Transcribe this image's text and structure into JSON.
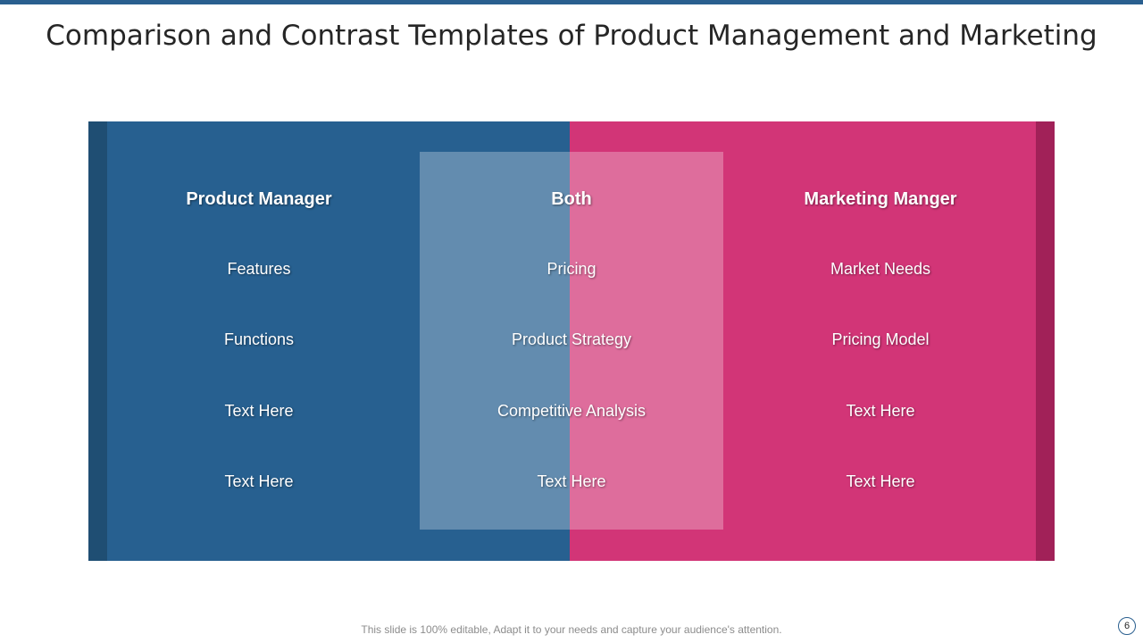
{
  "slide": {
    "title": "Comparison and Contrast Templates of Product Management and Marketing",
    "footer": "This slide is 100% editable, Adapt it to your needs and capture your audience's attention.",
    "page_number": "6"
  },
  "colors": {
    "top_bar": "#2a5f8f",
    "left_panel": "#276090",
    "left_edge": "#1f4e73",
    "right_panel": "#d23577",
    "right_edge": "#a12158"
  },
  "columns": {
    "left": {
      "heading": "Product Manager",
      "items": [
        "Features",
        "Functions",
        "Text Here",
        "Text Here"
      ]
    },
    "middle": {
      "heading": "Both",
      "items": [
        "Pricing",
        "Product Strategy",
        "Competitive Analysis",
        "Text Here"
      ]
    },
    "right": {
      "heading": "Marketing Manger",
      "items": [
        "Market Needs",
        "Pricing Model",
        "Text Here",
        "Text Here"
      ]
    }
  }
}
